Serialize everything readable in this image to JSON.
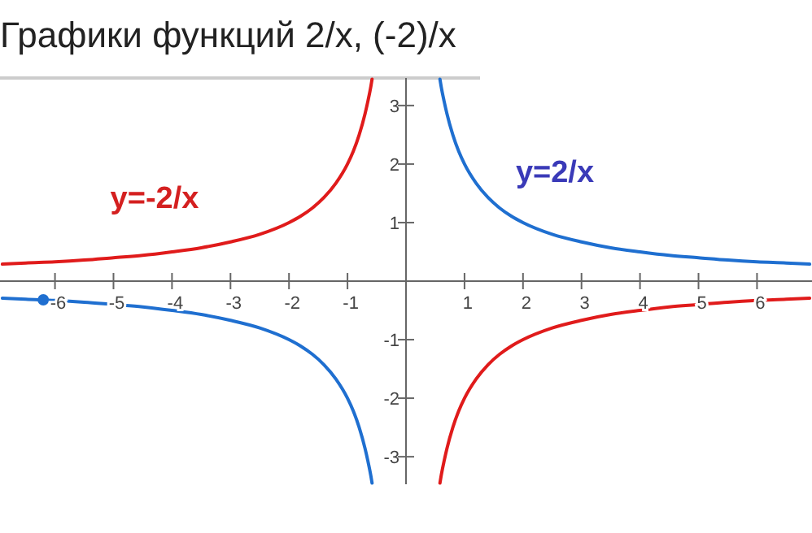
{
  "chart_data": {
    "type": "line",
    "title": "Графики функций 2/x, (-2)/x",
    "xlim": [
      -6.94,
      6.94
    ],
    "ylim": [
      -3.47,
      3.47
    ],
    "xticks": [
      -6,
      -5,
      -4,
      -3,
      -2,
      -1,
      1,
      2,
      3,
      4,
      5,
      6
    ],
    "yticks": [
      -3,
      -2,
      -1,
      1,
      2,
      3
    ],
    "grid": false,
    "marker": "none",
    "line_style": "solid",
    "series": [
      {
        "color": "#1f6fd0",
        "x": [
          -6.9,
          -6.5,
          -6,
          -5.5,
          -5,
          -4.5,
          -4,
          -3.5,
          -3,
          -2.5,
          -2,
          -1.8,
          -1.6,
          -1.4,
          -1.2,
          -1,
          -0.9,
          -0.8,
          -0.7,
          -0.65,
          -0.6,
          -0.58,
          null,
          0.58,
          0.6,
          0.65,
          0.7,
          0.8,
          0.9,
          1,
          1.2,
          1.4,
          1.6,
          1.8,
          2,
          2.5,
          3,
          3.5,
          4,
          4.5,
          5,
          5.5,
          6,
          6.5,
          6.9
        ],
        "values": [
          -0.29,
          -0.31,
          -0.33,
          -0.36,
          -0.4,
          -0.44,
          -0.5,
          -0.57,
          -0.67,
          -0.8,
          -1,
          -1.11,
          -1.25,
          -1.43,
          -1.67,
          -2,
          -2.22,
          -2.5,
          -2.86,
          -3.08,
          -3.33,
          -3.45,
          null,
          3.45,
          3.33,
          3.08,
          2.86,
          2.5,
          2.22,
          2,
          1.67,
          1.43,
          1.25,
          1.11,
          1,
          0.8,
          0.67,
          0.57,
          0.5,
          0.44,
          0.4,
          0.36,
          0.33,
          0.31,
          0.29
        ]
      },
      {
        "color": "#e01b1b",
        "x": [
          -6.9,
          -6.5,
          -6,
          -5.5,
          -5,
          -4.5,
          -4,
          -3.5,
          -3,
          -2.5,
          -2,
          -1.8,
          -1.6,
          -1.4,
          -1.2,
          -1,
          -0.9,
          -0.8,
          -0.7,
          -0.65,
          -0.6,
          -0.58,
          null,
          0.58,
          0.6,
          0.65,
          0.7,
          0.8,
          0.9,
          1,
          1.2,
          1.4,
          1.6,
          1.8,
          2,
          2.5,
          3,
          3.5,
          4,
          4.5,
          5,
          5.5,
          6,
          6.5,
          6.9
        ],
        "values": [
          0.29,
          0.31,
          0.33,
          0.36,
          0.4,
          0.44,
          0.5,
          0.57,
          0.67,
          0.8,
          1,
          1.11,
          1.25,
          1.43,
          1.67,
          2,
          2.22,
          2.5,
          2.86,
          3.08,
          3.33,
          3.45,
          null,
          -3.45,
          -3.33,
          -3.08,
          -2.86,
          -2.5,
          -2.22,
          -2,
          -1.67,
          -1.43,
          -1.25,
          -1.11,
          -1,
          -0.8,
          -0.67,
          -0.57,
          -0.5,
          -0.44,
          -0.4,
          -0.36,
          -0.33,
          -0.31,
          -0.29
        ]
      },
      {
        "type": "scatter",
        "color": "#1f6fd0",
        "marker": "circle",
        "x": [
          -6.2
        ],
        "values": [
          -0.32
        ]
      }
    ],
    "annotations": [
      "y=-2/x",
      "y=2/x"
    ]
  }
}
